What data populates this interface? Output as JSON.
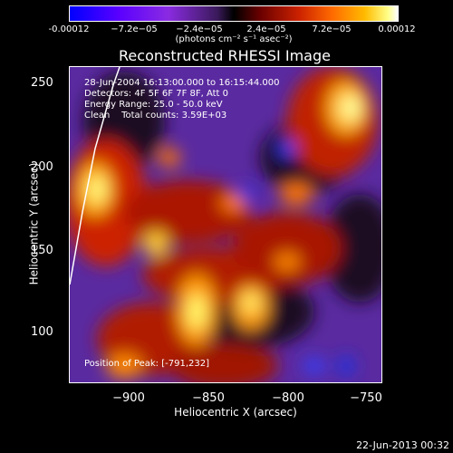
{
  "colorbar": {
    "ticks": [
      "-0.00012",
      "−7.2e−05",
      "−2.4e−05",
      "2.4e−05",
      "7.2e−05",
      "0.00012"
    ],
    "units": "(photons cm⁻² s⁻¹ asec⁻²)"
  },
  "plot": {
    "title": "Reconstructed RHESSI Image",
    "xlabel": "Heliocentric X (arcsec)",
    "ylabel": "Heliocentric Y (arcsec)",
    "xticks": [
      "−900",
      "−850",
      "−800",
      "−750"
    ],
    "yticks": [
      "250",
      "200",
      "150",
      "100"
    ]
  },
  "info": {
    "line1": "28-Jun-2004 16:13:00.000 to 16:15:44.000",
    "line2": "Detectors: 4F 5F 6F 7F 8F, Att 0",
    "line3": "Energy Range: 25.0 - 50.0 keV",
    "line4": "Clean    Total counts: 3.59E+03",
    "peak": "Position of Peak: [-791,232]"
  },
  "footer": "22-Jun-2013 00:32"
}
